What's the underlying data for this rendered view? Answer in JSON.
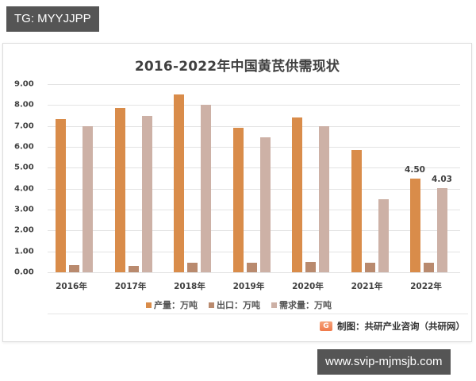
{
  "watermarks": {
    "top": "TG: MYYJJPP",
    "bottom": "www.svip-mjmsjb.com"
  },
  "source": {
    "icon": "gongyan-logo-icon",
    "text": "制图：共研产业咨询（共研网）"
  },
  "colors": {
    "production": "#D98C4A",
    "export": "#B98A6E",
    "demand": "#CDB1A6",
    "grid": "#E3E3E3",
    "text": "#404040"
  },
  "chart_data": {
    "type": "bar",
    "title": "2016-2022年中国黄芪供需现状",
    "xlabel": "",
    "ylabel": "",
    "ylim": [
      0,
      9
    ],
    "yticks": [
      "0.00",
      "1.00",
      "2.00",
      "3.00",
      "4.00",
      "5.00",
      "6.00",
      "7.00",
      "8.00",
      "9.00"
    ],
    "grid": true,
    "legend_position": "bottom",
    "categories": [
      "2016年",
      "2017年",
      "2018年",
      "2019年",
      "2020年",
      "2021年",
      "2022年"
    ],
    "series": [
      {
        "name": "产量：万吨",
        "values": [
          7.33,
          7.87,
          8.52,
          6.92,
          7.42,
          5.86,
          4.5
        ]
      },
      {
        "name": "出口：万吨",
        "values": [
          0.33,
          0.3,
          0.45,
          0.45,
          0.48,
          0.45,
          0.45
        ]
      },
      {
        "name": "需求量：万吨",
        "values": [
          6.99,
          7.49,
          8.03,
          6.47,
          6.99,
          3.5,
          4.03
        ]
      }
    ],
    "annotations": [
      {
        "category": "2022年",
        "series": "产量：万吨",
        "text": "4.50"
      },
      {
        "category": "2022年",
        "series": "需求量：万吨",
        "text": "4.03"
      }
    ]
  }
}
